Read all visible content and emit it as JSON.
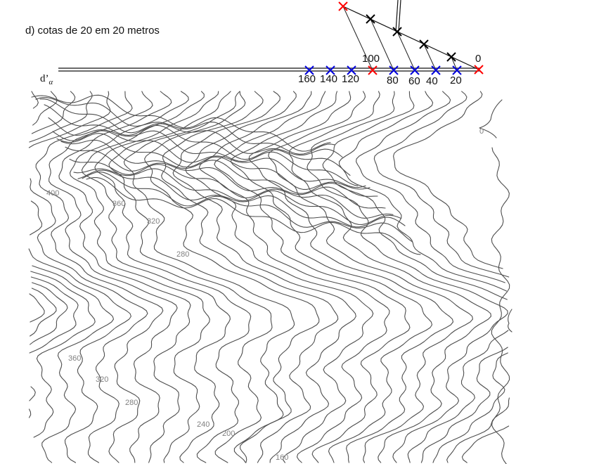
{
  "title": "d) cotas de 20 em 20 metros",
  "trace_label": {
    "main": "d’",
    "subscript": "α"
  },
  "scale": {
    "upper_labels": [
      "100",
      "0"
    ],
    "lower_labels": [
      "160",
      "140",
      "120",
      "80",
      "60",
      "40",
      "20"
    ]
  },
  "contour_labels": [
    "400",
    "360",
    "320",
    "280",
    "360",
    "320",
    "280",
    "240",
    "200",
    "160",
    "0"
  ],
  "colors": {
    "red_mark": "#ff0000",
    "blue_mark": "#0000dd",
    "black_mark": "#000000",
    "contour": "#555555"
  }
}
